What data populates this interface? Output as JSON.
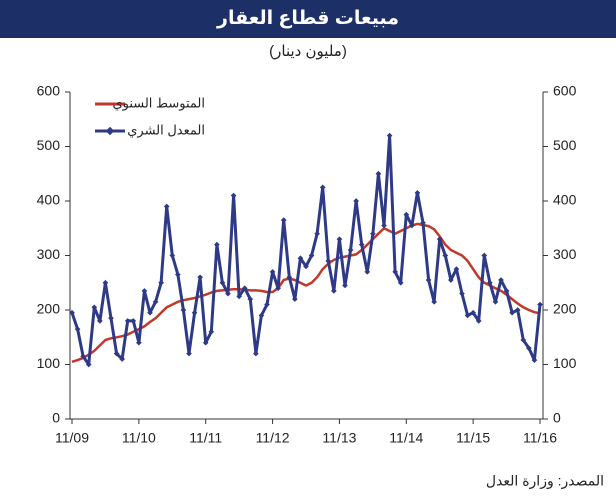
{
  "chart_data": {
    "type": "line",
    "title": "مبيعات قطاع العقار",
    "subtitle": "(مليون دينار)",
    "source": "المصدر: وزارة العدل",
    "categories": [
      "11/09",
      null,
      null,
      null,
      null,
      null,
      null,
      null,
      null,
      null,
      null,
      null,
      "11/10",
      null,
      null,
      null,
      null,
      null,
      null,
      null,
      null,
      null,
      null,
      null,
      "11/11",
      null,
      null,
      null,
      null,
      null,
      null,
      null,
      null,
      null,
      null,
      null,
      "11/12",
      null,
      null,
      null,
      null,
      null,
      null,
      null,
      null,
      null,
      null,
      null,
      "11/13",
      null,
      null,
      null,
      null,
      null,
      null,
      null,
      null,
      null,
      null,
      null,
      "11/14",
      null,
      null,
      null,
      null,
      null,
      null,
      null,
      null,
      null,
      null,
      null,
      "11/15",
      null,
      null,
      null,
      null,
      null,
      null,
      null,
      null,
      null,
      null,
      null,
      "11/16"
    ],
    "series": [
      {
        "name": "المتوسط السنوي",
        "color": "#c0392b",
        "values": [
          105,
          108,
          112,
          118,
          125,
          135,
          145,
          148,
          150,
          152,
          155,
          160,
          165,
          170,
          178,
          185,
          195,
          205,
          210,
          215,
          218,
          220,
          222,
          225,
          228,
          232,
          235,
          236,
          237,
          238,
          238,
          237,
          236,
          236,
          235,
          233,
          233,
          240,
          255,
          258,
          255,
          250,
          245,
          250,
          260,
          275,
          285,
          292,
          296,
          298,
          300,
          302,
          310,
          320,
          330,
          340,
          350,
          345,
          340,
          345,
          350,
          355,
          358,
          356,
          354,
          348,
          335,
          320,
          310,
          305,
          300,
          290,
          275,
          260,
          250,
          245,
          240,
          235,
          228,
          220,
          212,
          205,
          200,
          196,
          194
        ]
      },
      {
        "name": "المعدل الشري",
        "color": "#2e3a87",
        "values": [
          195,
          165,
          115,
          100,
          205,
          180,
          250,
          185,
          120,
          110,
          180,
          180,
          140,
          235,
          195,
          215,
          250,
          390,
          300,
          265,
          200,
          120,
          195,
          260,
          140,
          160,
          320,
          250,
          230,
          410,
          225,
          240,
          220,
          120,
          190,
          210,
          270,
          240,
          365,
          260,
          220,
          295,
          280,
          300,
          340,
          425,
          290,
          235,
          330,
          245,
          310,
          400,
          320,
          270,
          340,
          450,
          355,
          520,
          270,
          250,
          375,
          355,
          415,
          360,
          255,
          215,
          330,
          300,
          255,
          275,
          230,
          190,
          195,
          180,
          300,
          250,
          215,
          255,
          235,
          195,
          200,
          145,
          130,
          108,
          210
        ]
      }
    ],
    "ylim": [
      0,
      600
    ],
    "yticks": [
      0,
      100,
      200,
      300,
      400,
      500,
      600
    ],
    "grid": false
  }
}
